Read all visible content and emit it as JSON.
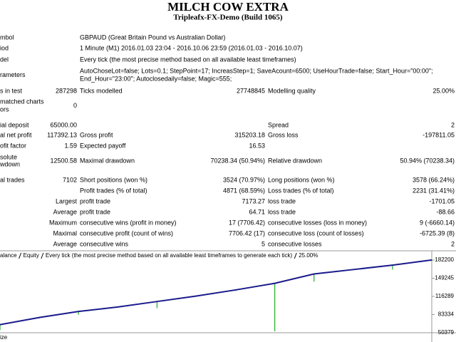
{
  "header": {
    "title": "MILCH COW EXTRA",
    "subtitle": "Tripleafx-FX-Demo (Build 1065)"
  },
  "report": {
    "rows": [
      [
        [
          "mbol"
        ],
        null,
        [
          "GBPAUD (Great Britain Pound vs Australian Dollar)"
        ],
        null,
        null,
        null
      ],
      [
        [
          "iod"
        ],
        null,
        [
          "1 Minute (M1) 2016.01.03 23:04 - 2016.10.06 23:59 (2016.01.03 - 2016.10.07)"
        ],
        null,
        null,
        null
      ],
      [
        [
          "del"
        ],
        null,
        [
          "Every tick (the most precise method based on all available least timeframes)"
        ],
        null,
        null,
        null
      ],
      [
        [
          "rameters"
        ],
        null,
        [
          "AutoChoseLot=false; Lots=0.1; StepPoint=17; IncreasStep=1; SaveAcount=6500; UseHourTrade=false; Start_Hour=\"00:00\";",
          "End_Hour=\"23:00\"; Autoclosedaily=false; Magic=555;"
        ],
        null,
        null,
        null
      ],
      [
        [
          "s in test"
        ],
        [
          "287298"
        ],
        [
          "Ticks modelled"
        ],
        [
          "27748845"
        ],
        [
          "Modelling quality"
        ],
        [
          "25.00%"
        ]
      ],
      [
        [
          "matched charts",
          "ors"
        ],
        [
          "0"
        ],
        null,
        null,
        null,
        null
      ],
      [
        [
          "ial deposit"
        ],
        [
          "65000.00"
        ],
        null,
        null,
        [
          "Spread"
        ],
        [
          "2"
        ]
      ],
      [
        [
          "al net profit"
        ],
        [
          "117392.13"
        ],
        [
          "Gross profit"
        ],
        [
          "315203.18"
        ],
        [
          "Gross loss"
        ],
        [
          "-197811.05"
        ]
      ],
      [
        [
          "ofit factor"
        ],
        [
          "1.59"
        ],
        [
          "Expected payoff"
        ],
        [
          "16.53"
        ],
        null,
        null
      ],
      [
        [
          "solute",
          "wdown"
        ],
        [
          "12500.58"
        ],
        [
          "Maximal drawdown"
        ],
        [
          "70238.34 (50.94%)"
        ],
        [
          "Relative drawdown"
        ],
        [
          "50.94% (70238.34)"
        ]
      ],
      [
        [
          "al trades"
        ],
        [
          "7102"
        ],
        [
          "Short positions (won %)"
        ],
        [
          "3524 (70.97%)"
        ],
        [
          "Long positions (won %)"
        ],
        [
          "3578 (66.24%)"
        ]
      ],
      [
        null,
        null,
        [
          "Profit trades (% of total)"
        ],
        [
          "4871 (68.59%)"
        ],
        [
          "Loss trades (% of total)"
        ],
        [
          "2231 (31.41%)"
        ]
      ],
      [
        null,
        [
          "Largest"
        ],
        [
          "profit trade"
        ],
        [
          "7173.27"
        ],
        [
          "loss trade"
        ],
        [
          "-1701.05"
        ]
      ],
      [
        null,
        [
          "Average"
        ],
        [
          "profit trade"
        ],
        [
          "64.71"
        ],
        [
          "loss trade"
        ],
        [
          "-88.66"
        ]
      ],
      [
        null,
        [
          "Maximum"
        ],
        [
          "consecutive wins (profit in money)"
        ],
        [
          "17 (7706.42)"
        ],
        [
          "consecutive losses (loss in money)"
        ],
        [
          "9 (-6660.14)"
        ]
      ],
      [
        null,
        [
          "Maximal"
        ],
        [
          "consecutive profit (count of wins)"
        ],
        [
          "7706.42 (17)"
        ],
        [
          "consecutive loss (count of losses)"
        ],
        [
          "-6725.39 (8)"
        ]
      ],
      [
        null,
        [
          "Average"
        ],
        [
          "consecutive wins"
        ],
        [
          "5"
        ],
        [
          "consecutive losses"
        ],
        [
          "2"
        ]
      ]
    ]
  },
  "chart_data": {
    "type": "line",
    "note": "Every tick (the most precise method based on all available least timeframes to generate each tick)",
    "quality": "25.00%",
    "size_label": "ize",
    "categories": [
      null,
      null,
      null,
      null,
      null,
      null,
      null,
      null,
      null,
      null,
      null,
      null
    ],
    "series": [
      {
        "name": "alance",
        "color": "#1a1a8c",
        "values": [
          65000,
          78000,
          89000,
          97000,
          107000,
          117000,
          128000,
          140000,
          157000,
          165000,
          173000,
          182392
        ]
      },
      {
        "name": "Equity",
        "color": "#22aa22",
        "values": [
          55000,
          76500,
          83000,
          96000,
          95000,
          116000,
          126000,
          53000,
          143000,
          164000,
          165000,
          180000
        ]
      }
    ],
    "ylim": [
      50379,
      199000
    ],
    "yticks": [
      50379,
      83334,
      116289,
      149245,
      182200
    ]
  }
}
